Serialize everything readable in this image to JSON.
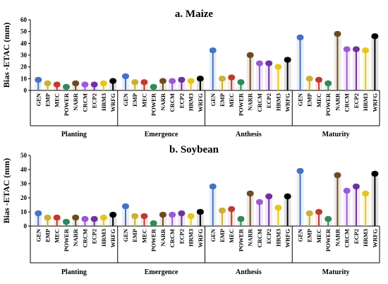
{
  "chart_data": [
    {
      "type": "lollipop",
      "title": "a. Maize",
      "ylabel": "Bias -ETAC (mm)",
      "ylim": [
        0,
        60
      ],
      "yticks": [
        0,
        10,
        20,
        30,
        40,
        50,
        60
      ],
      "categories": [
        "GEN",
        "EMP",
        "MEC",
        "POWER",
        "NARR",
        "CRCM",
        "ECP2",
        "HRM3",
        "WRFG"
      ],
      "groups": [
        "Planting",
        "Emergence",
        "Anthesis",
        "Maturity"
      ],
      "series": [
        {
          "values": [
            9,
            6,
            5,
            3,
            6,
            5,
            5,
            6,
            8
          ]
        },
        {
          "values": [
            12,
            7,
            7,
            3,
            8,
            8,
            9,
            8,
            10
          ]
        },
        {
          "values": [
            34,
            10,
            11,
            7,
            30,
            23,
            23,
            20,
            26
          ]
        },
        {
          "values": [
            45,
            10,
            9,
            6,
            48,
            35,
            35,
            34,
            46
          ]
        }
      ]
    },
    {
      "type": "lollipop",
      "title": "b. Soybean",
      "ylabel": "Bias -ETAC (mm)",
      "ylim": [
        0,
        50
      ],
      "yticks": [
        0,
        10,
        20,
        30,
        40,
        50
      ],
      "categories": [
        "GEN",
        "EMP",
        "MEC",
        "POWER",
        "NARR",
        "CRCM",
        "ECP2",
        "HRM3",
        "WRFG"
      ],
      "groups": [
        "Planting",
        "Emergence",
        "Anthesis",
        "Maturity"
      ],
      "series": [
        {
          "values": [
            9,
            6,
            6,
            3,
            6,
            5,
            5,
            6,
            8
          ]
        },
        {
          "values": [
            14,
            7,
            7,
            2,
            8,
            8,
            9,
            7,
            10
          ]
        },
        {
          "values": [
            28,
            11,
            12,
            5,
            23,
            17,
            21,
            13,
            21
          ]
        },
        {
          "values": [
            39,
            9,
            10,
            5,
            36,
            25,
            28,
            23,
            37
          ]
        }
      ]
    }
  ],
  "colors": [
    "#4472c4",
    "#c9b037",
    "#c0392b",
    "#2e8b57",
    "#6b4c1e",
    "#9b59d6",
    "#7030a0",
    "#e6c619",
    "#000000"
  ]
}
